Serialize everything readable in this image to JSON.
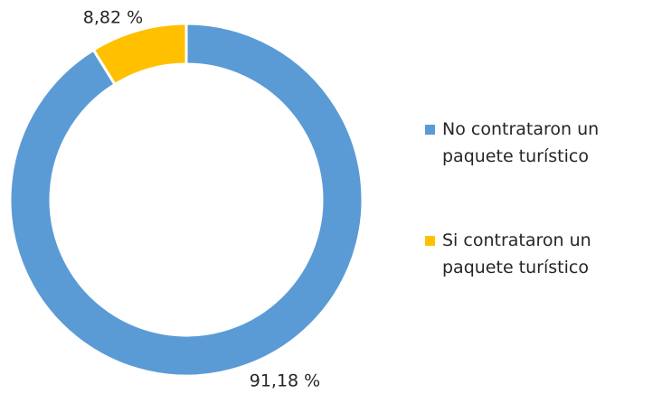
{
  "chart_data": {
    "type": "donut",
    "categories": [
      "No contrataron un paquete turístico",
      "Si contrataron un paquete turístico"
    ],
    "values": [
      91.18,
      8.82
    ],
    "value_labels": [
      "91,18 %",
      "8,82 %"
    ],
    "colors": [
      "#5b9bd5",
      "#ffc000"
    ],
    "legend": "right"
  }
}
